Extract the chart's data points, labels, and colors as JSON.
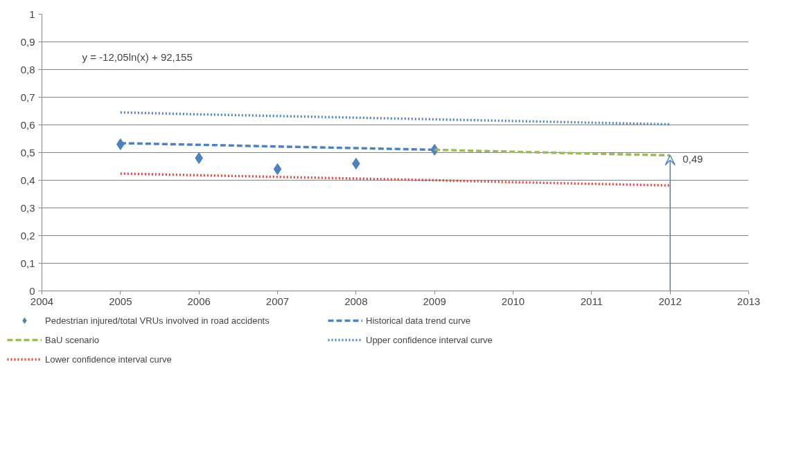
{
  "chart_data": {
    "type": "line",
    "xlim": [
      2004,
      2013
    ],
    "xticks": [
      2004,
      2005,
      2006,
      2007,
      2008,
      2009,
      2010,
      2011,
      2012,
      2013
    ],
    "ylim": [
      0,
      1
    ],
    "yticks": [
      0,
      {
        "value": 0.1,
        "label": "0,1"
      },
      {
        "value": 0.2,
        "label": "0,2"
      },
      {
        "value": 0.3,
        "label": "0,3"
      },
      {
        "value": 0.4,
        "label": "0,4"
      },
      {
        "value": 0.5,
        "label": "0,5"
      },
      {
        "value": 0.6,
        "label": "0,6"
      },
      {
        "value": 0.7,
        "label": "0,7"
      },
      {
        "value": 0.8,
        "label": "0,8"
      },
      {
        "value": 0.9,
        "label": "0,9"
      },
      1
    ],
    "grid": "y",
    "legend": "bottom",
    "series": [
      {
        "name": "Pedestrian injured/total VRUs involved in road accidents",
        "type": "scatter",
        "marker": "diamond",
        "color": "#4f81bd",
        "x": [
          2005,
          2006,
          2007,
          2008,
          2009
        ],
        "values": [
          0.53,
          0.48,
          0.44,
          0.46,
          0.51
        ]
      },
      {
        "name": "Historical data trend curve",
        "line_style": "dashed",
        "color": "#4f81bd",
        "x": [
          2005,
          2006,
          2007,
          2008,
          2009
        ],
        "values": [
          0.534,
          0.528,
          0.522,
          0.516,
          0.51
        ]
      },
      {
        "name": "BaU scenario",
        "line_style": "dashed",
        "color": "#9bbb59",
        "x": [
          2009,
          2010,
          2011,
          2012
        ],
        "values": [
          0.51,
          0.503,
          0.496,
          0.49
        ]
      },
      {
        "name": "Upper confidence interval curve",
        "line_style": "dotted",
        "color": "#4f81bd",
        "x": [
          2005,
          2006,
          2007,
          2008,
          2009,
          2010,
          2011,
          2012
        ],
        "values": [
          0.645,
          0.638,
          0.632,
          0.626,
          0.62,
          0.614,
          0.608,
          0.602
        ]
      },
      {
        "name": "Lower confidence interval curve",
        "line_style": "dotted",
        "color": "#e0413a",
        "x": [
          2005,
          2006,
          2007,
          2008,
          2009,
          2010,
          2011,
          2012
        ],
        "values": [
          0.424,
          0.418,
          0.412,
          0.406,
          0.4,
          0.393,
          0.387,
          0.381
        ]
      }
    ],
    "annotations": [
      "y = -12,05ln(x) + 92,155",
      {
        "text": "0,49",
        "x": 2012,
        "y": 0.49
      }
    ]
  }
}
